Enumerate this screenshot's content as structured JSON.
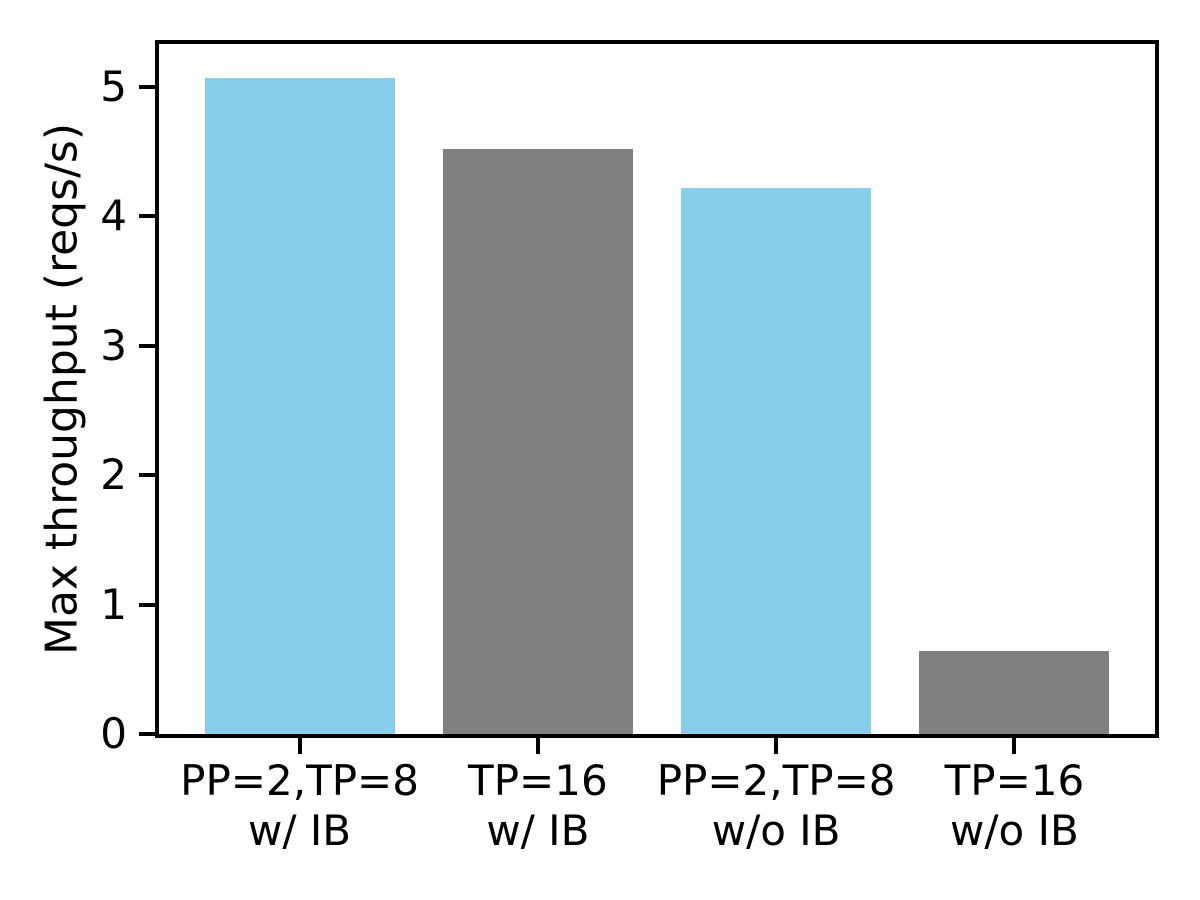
{
  "chart_data": {
    "type": "bar",
    "title": "",
    "xlabel": "",
    "ylabel": "Max throughput (reqs/s)",
    "categories": [
      "PP=2,TP=8\nw/ IB",
      "TP=16\nw/ IB",
      "PP=2,TP=8\nw/o IB",
      "TP=16\nw/o IB"
    ],
    "values": [
      5.07,
      4.52,
      4.22,
      0.64
    ],
    "bar_colors": [
      "#87CEEB",
      "#808080",
      "#87CEEB",
      "#808080"
    ],
    "yticks": [
      0,
      1,
      2,
      3,
      4,
      5
    ],
    "ylim": [
      0,
      5.33
    ],
    "grid": false,
    "legend": null,
    "accent_blue": "#87CEEB",
    "accent_gray": "#808080",
    "axis_color": "#000000"
  }
}
